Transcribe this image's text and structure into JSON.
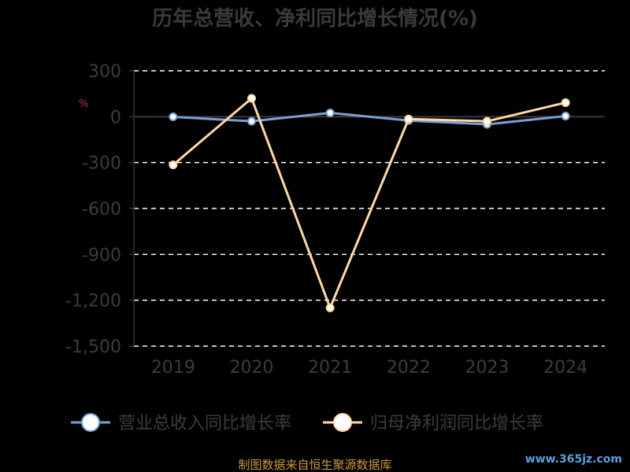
{
  "chart_data": {
    "type": "line",
    "title": "历年总营收、净利同比增长情况(%)",
    "unit_mark": "%",
    "x": [
      "2019",
      "2020",
      "2021",
      "2022",
      "2023",
      "2024"
    ],
    "ylim": [
      -1500,
      300
    ],
    "yticks": [
      300,
      0,
      -300,
      -600,
      -900,
      -1200,
      -1500
    ],
    "ytick_labels": [
      "300",
      "0",
      "-300",
      "-600",
      "-900",
      "-1,200",
      "-1,500"
    ],
    "grid": true,
    "legend": "bottom",
    "series": [
      {
        "name": "营业总收入同比增长率",
        "color": "#7b9fd4",
        "values": [
          -1,
          -30,
          25,
          -25,
          -50,
          4
        ]
      },
      {
        "name": "归母净利润同比增长率",
        "color": "#ffd9a0",
        "values": [
          -315,
          120,
          -1250,
          -15,
          -30,
          92
        ]
      }
    ]
  },
  "source_text": "制图数据来自恒生聚源数据库",
  "watermark": "www.365jz.com"
}
